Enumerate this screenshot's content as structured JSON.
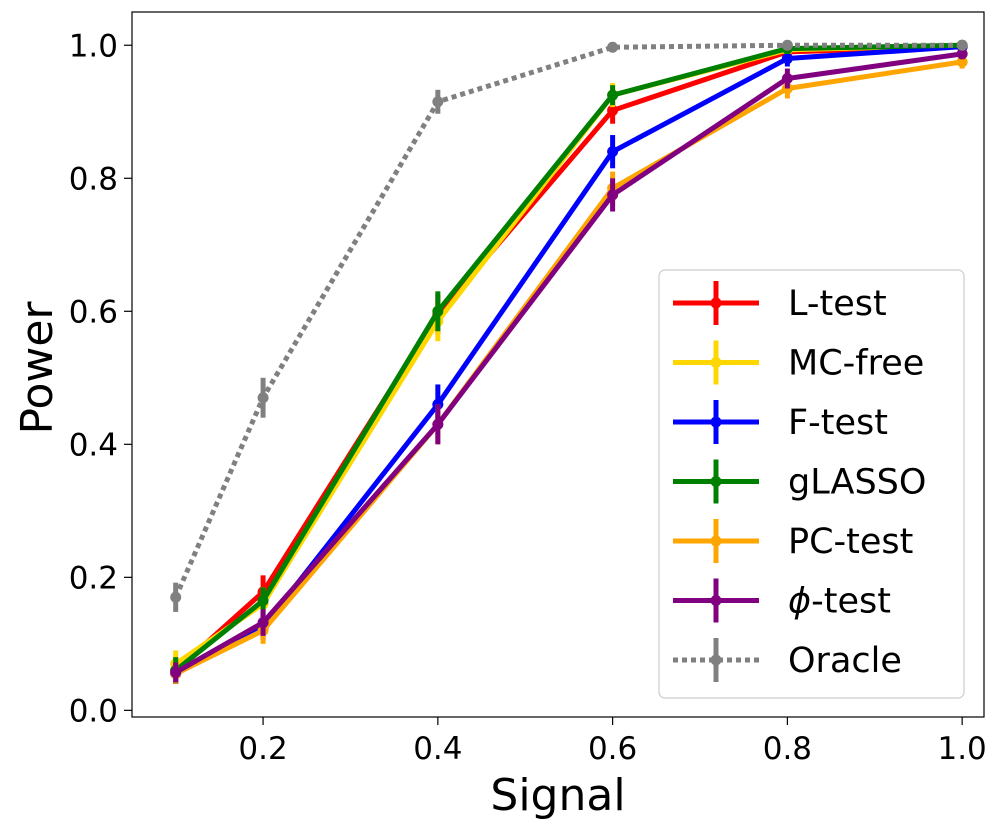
{
  "chart_data": {
    "type": "line",
    "title": "",
    "xlabel": "Signal",
    "ylabel": "Power",
    "x": [
      0.1,
      0.2,
      0.4,
      0.6,
      0.8,
      1.0
    ],
    "xlim": [
      0.05,
      1.025
    ],
    "ylim": [
      -0.01,
      1.05
    ],
    "xticks": [
      0.2,
      0.4,
      0.6,
      0.8,
      1.0
    ],
    "xtick_labels": [
      "0.2",
      "0.4",
      "0.6",
      "0.8",
      "1.0"
    ],
    "yticks": [
      0.0,
      0.2,
      0.4,
      0.6,
      0.8,
      1.0
    ],
    "ytick_labels": [
      "0.0",
      "0.2",
      "0.4",
      "0.6",
      "0.8",
      "1.0"
    ],
    "grid": false,
    "legend_position": "center-right",
    "series": [
      {
        "name": "L-test",
        "label": "L-test",
        "color": "#ff0000",
        "dashed": false,
        "values": [
          0.06,
          0.178,
          0.595,
          0.902,
          0.99,
          0.998
        ],
        "errors": [
          0.02,
          0.025,
          0.03,
          0.02,
          0.01,
          0.005
        ]
      },
      {
        "name": "MC-free",
        "label": "MC-free",
        "color": "#ffd700",
        "dashed": false,
        "values": [
          0.07,
          0.16,
          0.585,
          0.925,
          0.993,
          1.0
        ],
        "errors": [
          0.02,
          0.025,
          0.03,
          0.018,
          0.008,
          0.004
        ]
      },
      {
        "name": "F-test",
        "label": "F-test",
        "color": "#0000ff",
        "dashed": false,
        "values": [
          0.055,
          0.125,
          0.46,
          0.84,
          0.98,
          0.998
        ],
        "errors": [
          0.015,
          0.02,
          0.03,
          0.025,
          0.012,
          0.005
        ]
      },
      {
        "name": "gLASSO",
        "label": "gLASSO",
        "color": "#008000",
        "dashed": false,
        "values": [
          0.06,
          0.165,
          0.6,
          0.925,
          0.995,
          1.0
        ],
        "errors": [
          0.02,
          0.02,
          0.03,
          0.015,
          0.008,
          0.004
        ]
      },
      {
        "name": "PC-test",
        "label": "PC-test",
        "color": "#ffa500",
        "dashed": false,
        "values": [
          0.055,
          0.12,
          0.43,
          0.785,
          0.935,
          0.975
        ],
        "errors": [
          0.015,
          0.02,
          0.03,
          0.025,
          0.015,
          0.01
        ]
      },
      {
        "name": "phi-test",
        "label": "-test",
        "symbol": "ϕ",
        "color": "#800080",
        "dashed": false,
        "values": [
          0.057,
          0.132,
          0.43,
          0.775,
          0.95,
          0.987
        ],
        "errors": [
          0.015,
          0.02,
          0.03,
          0.025,
          0.015,
          0.008
        ]
      },
      {
        "name": "Oracle",
        "label": "Oracle",
        "color": "#808080",
        "dashed": true,
        "values": [
          0.17,
          0.47,
          0.915,
          0.997,
          1.0,
          1.0
        ],
        "errors": [
          0.022,
          0.03,
          0.018,
          0.005,
          0.003,
          0.002
        ]
      }
    ]
  }
}
